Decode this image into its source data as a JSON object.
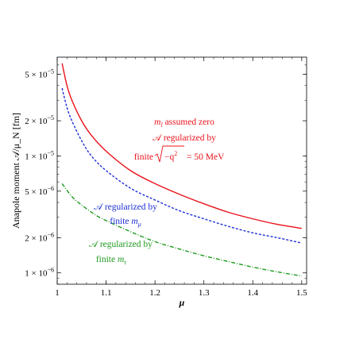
{
  "chart_data": {
    "type": "line",
    "title": "",
    "xlabel": "μ",
    "ylabel": "Anapole moment 𝒜/μ_N [fm]",
    "xscale": "linear",
    "yscale": "log",
    "xlim": [
      1.0,
      1.51
    ],
    "ylim": [
      8e-07,
      7e-05
    ],
    "grid": false,
    "x_ticks": [
      1.0,
      1.1,
      1.2,
      1.3,
      1.4,
      1.5
    ],
    "x_tick_labels": [
      "1",
      "1.1",
      "1.2",
      "1.3",
      "1.4",
      "1.5"
    ],
    "y_ticks": [
      1e-06,
      2e-06,
      5e-06,
      1e-05,
      2e-05,
      5e-05
    ],
    "y_tick_labels": [
      {
        "mant": "1",
        "exp": "−6"
      },
      {
        "mant": "2",
        "exp": "−6"
      },
      {
        "mant": "5",
        "exp": "−6"
      },
      {
        "mant": "1",
        "exp": "−5"
      },
      {
        "mant": "2",
        "exp": "−5"
      },
      {
        "mant": "5",
        "exp": "−5"
      }
    ],
    "series": [
      {
        "color": "#e8121a",
        "dash": "solid",
        "x": [
          1.01,
          1.02,
          1.03,
          1.05,
          1.07,
          1.1,
          1.15,
          1.2,
          1.25,
          1.3,
          1.35,
          1.4,
          1.45,
          1.5
        ],
        "y": [
          6.2e-05,
          4e-05,
          3e-05,
          2e-05,
          1.5e-05,
          1.1e-05,
          7.5e-06,
          5.8e-06,
          4.7e-06,
          3.9e-06,
          3.3e-06,
          2.9e-06,
          2.6e-06,
          2.4e-06
        ]
      },
      {
        "color": "#1e2fd6",
        "dash": "dashed",
        "x": [
          1.01,
          1.02,
          1.03,
          1.05,
          1.07,
          1.1,
          1.15,
          1.2,
          1.25,
          1.3,
          1.35,
          1.4,
          1.45,
          1.5
        ],
        "y": [
          3.8e-05,
          2.6e-05,
          2e-05,
          1.35e-05,
          1e-05,
          7.5e-06,
          5.3e-06,
          4.2e-06,
          3.4e-06,
          2.9e-06,
          2.5e-06,
          2.2e-06,
          2e-06,
          1.8e-06
        ]
      },
      {
        "color": "#1f9a1f",
        "dash": "dashdot",
        "x": [
          1.01,
          1.03,
          1.05,
          1.08,
          1.1,
          1.15,
          1.2,
          1.25,
          1.3,
          1.35,
          1.4,
          1.45,
          1.5
        ],
        "y": [
          5.8e-06,
          4.5e-06,
          3.8e-06,
          3.1e-06,
          2.8e-06,
          2.25e-06,
          1.85e-06,
          1.6e-06,
          1.4e-06,
          1.25e-06,
          1.12e-06,
          1.02e-06,
          9.4e-07
        ]
      }
    ],
    "annotations": [
      {
        "color": "#e8121a",
        "lines": [
          "m_l assumed zero",
          "𝒜 regularized by",
          "finite √(−q²) = 50 MeV"
        ],
        "l1_var": "m",
        "l1_sub": "l",
        "l1_rest": " assumed zero",
        "l2": "𝒜 regularized by",
        "l3_pre": "finite ",
        "l3_rad": "−q",
        "l3_sup": "2",
        "l3_post": " = 50 MeV"
      },
      {
        "color": "#1e2fd6",
        "l1": "𝒜 regularized by",
        "l2_pre": "finite ",
        "l2_var": "m",
        "l2_sub": "μ"
      },
      {
        "color": "#1f9a1f",
        "l1": "𝒜 regularized by",
        "l2_pre": "finite ",
        "l2_var": "m",
        "l2_sub": "τ"
      }
    ]
  }
}
